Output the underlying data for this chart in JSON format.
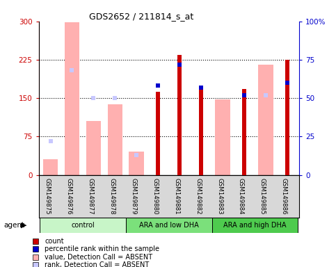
{
  "title": "GDS2652 / 211814_s_at",
  "samples": [
    "GSM149875",
    "GSM149876",
    "GSM149877",
    "GSM149878",
    "GSM149879",
    "GSM149880",
    "GSM149881",
    "GSM149882",
    "GSM149883",
    "GSM149884",
    "GSM149885",
    "GSM149886"
  ],
  "groups": [
    {
      "label": "control",
      "color": "#c8f5c8",
      "start": 0,
      "end": 4
    },
    {
      "label": "ARA and low DHA",
      "color": "#7be07b",
      "start": 4,
      "end": 8
    },
    {
      "label": "ARA and high DHA",
      "color": "#4ecb4e",
      "start": 8,
      "end": 12
    }
  ],
  "count_values": [
    0,
    0,
    0,
    0,
    0,
    163,
    235,
    170,
    0,
    168,
    0,
    225
  ],
  "rank_values_pct": [
    0,
    0,
    0,
    0,
    0,
    58,
    72,
    57,
    0,
    52,
    0,
    60
  ],
  "absent_value_values": [
    30,
    298,
    105,
    138,
    45,
    0,
    0,
    0,
    148,
    0,
    215,
    0
  ],
  "absent_rank_pct": [
    22,
    68,
    50,
    50,
    13,
    0,
    0,
    0,
    0,
    0,
    52,
    0
  ],
  "is_absent": [
    true,
    true,
    true,
    true,
    true,
    false,
    false,
    false,
    true,
    false,
    true,
    false
  ],
  "is_present": [
    false,
    false,
    false,
    false,
    false,
    true,
    true,
    true,
    false,
    true,
    false,
    true
  ],
  "ylim_left": [
    0,
    300
  ],
  "ylim_right": [
    0,
    100
  ],
  "yticks_left": [
    0,
    75,
    150,
    225,
    300
  ],
  "yticks_right": [
    0,
    25,
    50,
    75,
    100
  ],
  "count_color": "#cc0000",
  "rank_color": "#0000cc",
  "absent_value_color": "#ffb0b0",
  "absent_rank_color": "#c8c8ff",
  "bg_color": "#d8d8d8",
  "plot_bg": "#ffffff"
}
